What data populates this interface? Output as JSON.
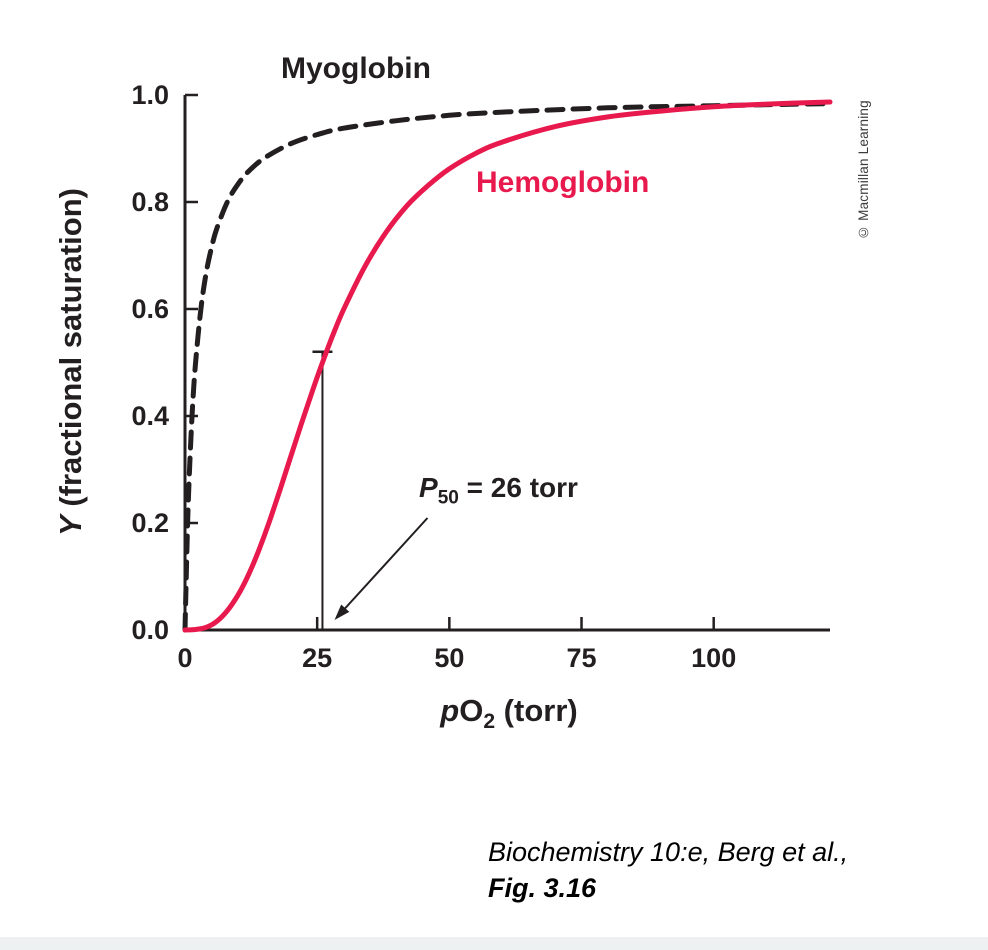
{
  "figure": {
    "watermark": "© Macmillan Learning",
    "citation_line1": "Biochemistry 10:e, Berg et al.,",
    "citation_line2": "Fig. 3.16"
  },
  "chart_data": {
    "type": "line",
    "title": "",
    "xlabel": "pO2 (torr)",
    "ylabel": "Y (fractional saturation)",
    "xlabel_parts": {
      "p": "p",
      "O": "O",
      "sub": "2",
      "rest": " (torr)"
    },
    "ylabel_parts": {
      "Y": "Y",
      "rest": " (fractional saturation)"
    },
    "xlim": [
      0,
      122
    ],
    "ylim": [
      0,
      1.0
    ],
    "x_ticks": [
      0,
      25,
      50,
      75,
      100
    ],
    "x_tick_labels": [
      "0",
      "25",
      "50",
      "75",
      "100"
    ],
    "y_ticks": [
      0,
      0.2,
      0.4,
      0.6,
      0.8,
      1.0
    ],
    "y_tick_labels": [
      "0.0",
      "0.2",
      "0.4",
      "0.6",
      "0.8",
      "1.0"
    ],
    "grid": false,
    "legend": "inline-labels",
    "axis_color": "#231f20",
    "series": [
      {
        "name": "Myoglobin",
        "color": "#231f20",
        "style": "dashed",
        "x": [
          0,
          0.5,
          1,
          1.5,
          2,
          3,
          4,
          5,
          6,
          8,
          10,
          12,
          15,
          20,
          25,
          30,
          40,
          50,
          60,
          80,
          100,
          122
        ],
        "y": [
          0,
          0.2,
          0.333,
          0.429,
          0.5,
          0.6,
          0.667,
          0.714,
          0.75,
          0.8,
          0.833,
          0.857,
          0.882,
          0.909,
          0.926,
          0.938,
          0.952,
          0.962,
          0.968,
          0.976,
          0.98,
          0.984
        ]
      },
      {
        "name": "Hemoglobin",
        "color": "#e8194d",
        "style": "solid",
        "x": [
          0,
          2,
          4,
          6,
          8,
          10,
          12,
          14,
          16,
          18,
          20,
          22,
          24,
          26,
          28,
          30,
          34,
          38,
          42,
          46,
          50,
          55,
          60,
          70,
          80,
          90,
          100,
          110,
          122
        ],
        "y": [
          0,
          0.001,
          0.005,
          0.016,
          0.036,
          0.065,
          0.103,
          0.15,
          0.204,
          0.263,
          0.324,
          0.385,
          0.444,
          0.5,
          0.552,
          0.599,
          0.679,
          0.743,
          0.793,
          0.831,
          0.862,
          0.891,
          0.912,
          0.941,
          0.959,
          0.97,
          0.978,
          0.983,
          0.987
        ]
      }
    ],
    "annotation": {
      "p_label": "P",
      "p_sub": "50",
      "value_text": " = 26 torr",
      "p50_torr": 26,
      "marker_top_y": 0.52
    }
  }
}
